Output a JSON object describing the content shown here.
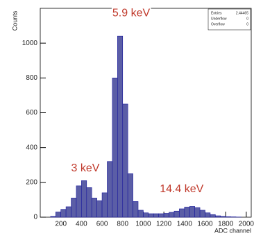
{
  "chart_data": {
    "type": "histogram",
    "y_label": "Counts",
    "x_label": "ADC channel",
    "bins": [
      100,
      150,
      200,
      250,
      300,
      350,
      400,
      450,
      500,
      550,
      600,
      650,
      700,
      750,
      800,
      850,
      900,
      950,
      1000,
      1050,
      1100,
      1150,
      1200,
      1250,
      1300,
      1350,
      1400,
      1450,
      1500,
      1550,
      1600,
      1650,
      1700,
      1750,
      1800,
      1850,
      1900,
      1950,
      2000
    ],
    "values": [
      5,
      30,
      45,
      60,
      110,
      180,
      210,
      170,
      110,
      95,
      140,
      320,
      800,
      1040,
      650,
      250,
      90,
      40,
      25,
      20,
      20,
      20,
      22,
      28,
      35,
      48,
      58,
      62,
      55,
      40,
      25,
      15,
      8,
      5,
      3,
      2,
      1,
      0
    ],
    "color": "#5b5ea6",
    "edge_color": "#1a1a9c",
    "xlim": [
      0,
      2048
    ],
    "xticks": [
      200,
      400,
      600,
      800,
      1000,
      1200,
      1400,
      1600,
      1800,
      2000
    ],
    "ylim": [
      0,
      1200
    ],
    "yticks": [
      0,
      200,
      400,
      600,
      800,
      1000
    ],
    "annotations": [
      {
        "text": "5.9 keV",
        "x": 700,
        "y": 1170
      },
      {
        "text": "3 keV",
        "x": 300,
        "y": 280
      },
      {
        "text": "14.4 keV",
        "x": 1160,
        "y": 160
      }
    ],
    "annotation_color": "#c0392b",
    "stats": [
      [
        "Entries",
        "2.44465"
      ],
      [
        "Underflow",
        "0"
      ],
      [
        "Overflow",
        "0"
      ]
    ]
  }
}
